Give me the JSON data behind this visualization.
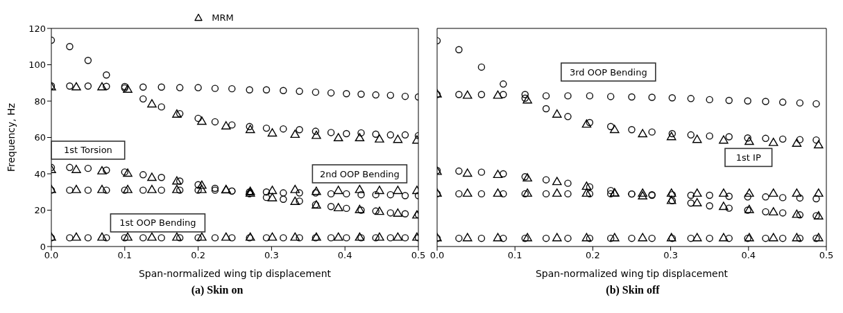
{
  "chart_data": [
    {
      "type": "scatter",
      "title": "(a) Skin on",
      "xlabel": "Span-normalized wing tip displacement",
      "ylabel": "Frequency, Hz",
      "xlim": [
        0,
        0.5
      ],
      "ylim": [
        0,
        120
      ],
      "xticks": [
        {
          "value": 0,
          "label": "0.0"
        },
        0.1,
        0.2,
        0.3,
        0.4,
        0.5
      ],
      "yticks": [
        0,
        20,
        40,
        60,
        80,
        100,
        120
      ],
      "grid": false,
      "legend": "top",
      "annotations": [
        "1st Torsion",
        "1st OOP Bending",
        "2nd OOP Bending"
      ],
      "series": [
        {
          "name": "MRM",
          "color": "#000000",
          "marker": "triangle",
          "x": [
            0,
            0.034,
            0.069,
            0.104,
            0.137,
            0.171,
            0.205,
            0.238,
            0.271,
            0.301,
            0.332,
            0.361,
            0.391,
            0.42,
            0.447,
            0.472,
            0.498,
            0,
            0.034,
            0.069,
            0.104,
            0.137,
            0.171,
            0.205,
            0.238,
            0.271,
            0.301,
            0.332,
            0.361,
            0.391,
            0.42,
            0.447,
            0.472,
            0.498,
            0,
            0.034,
            0.069,
            0.104,
            0.137,
            0.171,
            0.205,
            0.238,
            0.271,
            0.301,
            0.332,
            0.361,
            0.391,
            0.42,
            0.447,
            0.472,
            0.498,
            0,
            0.034,
            0.069,
            0.104,
            0.137,
            0.171,
            0.205,
            0.238,
            0.271,
            0.301,
            0.332,
            0.361,
            0.391,
            0.42,
            0.447,
            0.472,
            0.498
          ],
          "values": [
            4.8,
            4.8,
            4.8,
            4.8,
            4.8,
            4.8,
            4.8,
            4.8,
            4.8,
            4.8,
            4.8,
            4.8,
            4.8,
            4.8,
            4.8,
            4.8,
            4.8,
            31,
            31,
            31,
            31,
            31,
            31,
            31,
            31,
            30,
            30.5,
            31,
            30,
            30.5,
            31,
            30.5,
            30.5,
            30.5,
            42,
            42,
            41.3,
            40,
            37.7,
            35.7,
            33.4,
            30.8,
            29,
            26.5,
            24.5,
            22.5,
            21,
            20,
            19,
            18,
            17,
            87.5,
            87.5,
            87.5,
            86.2,
            78.1,
            72.5,
            68.6,
            66,
            64,
            62.1,
            61.4,
            60.8,
            59.5,
            59.5,
            58.8,
            58.6,
            58.2
          ]
        },
        {
          "color": "#111111",
          "marker": "circle",
          "x": [
            0,
            0.025,
            0.05,
            0.075,
            0.1,
            0.125,
            0.15,
            0.175,
            0.2,
            0.223,
            0.246,
            0.27,
            0.293,
            0.316,
            0.338,
            0.36,
            0.381,
            0.402,
            0.422,
            0.442,
            0.462,
            0.482,
            0.5,
            0,
            0.025,
            0.05,
            0.075,
            0.1,
            0.125,
            0.15,
            0.175,
            0.2,
            0.223,
            0.246,
            0.27,
            0.293,
            0.316,
            0.338,
            0.36,
            0.381,
            0.402,
            0.422,
            0.442,
            0.462,
            0.482,
            0.5,
            0,
            0.025,
            0.05,
            0.075,
            0.1,
            0.125,
            0.15,
            0.175,
            0.2,
            0.223,
            0.246,
            0.27,
            0.293,
            0.316,
            0.338,
            0.36,
            0.381,
            0.402,
            0.422,
            0.442,
            0.462,
            0.482,
            0.5,
            0,
            0.025,
            0.05,
            0.075,
            0.1,
            0.125,
            0.15,
            0.175,
            0.2,
            0.223,
            0.246,
            0.27,
            0.293,
            0.316,
            0.338,
            0.36,
            0.381,
            0.402,
            0.422,
            0.442,
            0.462,
            0.482,
            0.5,
            0,
            0.025,
            0.05,
            0.075,
            0.1,
            0.125,
            0.15,
            0.175,
            0.2,
            0.223,
            0.246,
            0.27,
            0.293,
            0.316,
            0.338,
            0.36,
            0.381,
            0.402,
            0.422,
            0.442,
            0.462,
            0.482,
            0.5
          ],
          "values": [
            4.8,
            4.8,
            4.8,
            4.8,
            4.8,
            4.8,
            4.8,
            4.8,
            4.8,
            4.8,
            4.8,
            4.8,
            4.8,
            4.8,
            4.8,
            4.8,
            4.8,
            4.8,
            4.8,
            4.8,
            4.8,
            4.8,
            4.8,
            31,
            31,
            31,
            31,
            31,
            31,
            31,
            31,
            31,
            31,
            30.5,
            30,
            30,
            29.5,
            29.5,
            29.5,
            29,
            29,
            28.5,
            28.5,
            28.5,
            28,
            28,
            43.5,
            43.5,
            43,
            42,
            41,
            39.5,
            38,
            36,
            34,
            32,
            30.5,
            29,
            27,
            26,
            25,
            23,
            22,
            21,
            20,
            19.5,
            18.5,
            18,
            17.5,
            88.4,
            88.3,
            88.3,
            88.1,
            87.2,
            81.2,
            76.8,
            73.1,
            70.5,
            68.6,
            66.9,
            66,
            65.1,
            64.7,
            64.3,
            63.4,
            62.7,
            62.1,
            62.5,
            61.8,
            61.4,
            61.4,
            61,
            113.5,
            110,
            102.4,
            94.4,
            88,
            87.7,
            87.7,
            87.4,
            87.4,
            87,
            86.8,
            86.2,
            86.2,
            85.8,
            85.4,
            84.9,
            84.5,
            84.1,
            83.8,
            83.4,
            83.2,
            82.6,
            82.3
          ]
        }
      ]
    },
    {
      "type": "scatter",
      "title": "(b) Skin off",
      "xlabel": "Span-normalized wing tip displacement",
      "xlim": [
        0,
        0.5
      ],
      "ylim": [
        0,
        120
      ],
      "xticks": [
        {
          "value": 0,
          "label": "0.0"
        },
        0.1,
        0.2,
        0.3,
        0.4,
        0.5
      ],
      "yticks": [
        0,
        20,
        40,
        60,
        80,
        100,
        120
      ],
      "grid": false,
      "tick_labels": "x",
      "annotations": [
        "3rd OOP Bending",
        "1st IP"
      ],
      "series": [
        {
          "color": "#000000",
          "marker": "triangle",
          "x": [
            0,
            0.039,
            0.078,
            0.116,
            0.154,
            0.192,
            0.228,
            0.264,
            0.301,
            0.334,
            0.368,
            0.401,
            0.432,
            0.462,
            0.49,
            0,
            0.039,
            0.078,
            0.116,
            0.154,
            0.192,
            0.228,
            0.264,
            0.301,
            0.334,
            0.368,
            0.401,
            0.432,
            0.462,
            0.49,
            0,
            0.039,
            0.078,
            0.116,
            0.154,
            0.192,
            0.228,
            0.264,
            0.301,
            0.334,
            0.368,
            0.401,
            0.432,
            0.462,
            0.49,
            0,
            0.039,
            0.078,
            0.116,
            0.154,
            0.192,
            0.228,
            0.264,
            0.301,
            0.334,
            0.368,
            0.401,
            0.432,
            0.462,
            0.49
          ],
          "values": [
            4.5,
            4.5,
            4.5,
            4.5,
            4.5,
            4.5,
            4.5,
            4.5,
            4.5,
            4.5,
            4.5,
            4.5,
            4.5,
            4.5,
            4.5,
            29,
            29,
            29,
            29,
            29,
            29,
            29,
            29,
            29,
            29,
            29,
            29,
            29,
            29,
            29,
            41,
            40,
            39.3,
            37.4,
            35.4,
            32.8,
            29.2,
            27.5,
            25,
            23.7,
            21.7,
            20,
            18.7,
            17.4,
            16.5,
            83.6,
            82.9,
            82.9,
            80.3,
            72.5,
            67,
            64,
            61.7,
            60.1,
            58.6,
            58.2,
            57.5,
            56.9,
            56.5,
            55.6
          ]
        },
        {
          "color": "#111111",
          "marker": "circle",
          "x": [
            0,
            0.028,
            0.057,
            0.085,
            0.113,
            0.14,
            0.168,
            0.196,
            0.223,
            0.25,
            0.276,
            0.302,
            0.326,
            0.35,
            0.375,
            0.399,
            0.422,
            0.444,
            0.466,
            0.487,
            0,
            0.028,
            0.057,
            0.085,
            0.113,
            0.14,
            0.168,
            0.196,
            0.223,
            0.25,
            0.276,
            0.302,
            0.326,
            0.35,
            0.375,
            0.399,
            0.422,
            0.444,
            0.466,
            0.487,
            0,
            0.028,
            0.057,
            0.085,
            0.113,
            0.14,
            0.168,
            0.196,
            0.223,
            0.25,
            0.276,
            0.302,
            0.326,
            0.35,
            0.375,
            0.399,
            0.422,
            0.444,
            0.466,
            0.487,
            0,
            0.028,
            0.057,
            0.085,
            0.113,
            0.14,
            0.168,
            0.196,
            0.223,
            0.25,
            0.276,
            0.302,
            0.326,
            0.35,
            0.375,
            0.399,
            0.422,
            0.444,
            0.466,
            0.487,
            0,
            0.028,
            0.057,
            0.085,
            0.113,
            0.14,
            0.168,
            0.196,
            0.223,
            0.25,
            0.276,
            0.302,
            0.326,
            0.35,
            0.375,
            0.399,
            0.422,
            0.444,
            0.466,
            0.487
          ],
          "values": [
            4.5,
            4.5,
            4.5,
            4.5,
            4.5,
            4.5,
            4.5,
            4.5,
            4.5,
            4.5,
            4.5,
            4.5,
            4.5,
            4.5,
            4.5,
            4.5,
            4.5,
            4.5,
            4.5,
            4.5,
            29,
            29,
            29,
            29,
            29,
            29,
            29,
            29,
            29,
            28.9,
            28.5,
            28.5,
            28.2,
            28.2,
            27.6,
            27.3,
            27.3,
            26.9,
            26.7,
            26.3,
            41.8,
            41.5,
            40.9,
            40,
            38.4,
            36.7,
            34.8,
            32.8,
            30.8,
            28.9,
            28.2,
            25.2,
            23.9,
            22.4,
            21.1,
            20,
            19.1,
            18.5,
            17.4,
            16.9,
            83.6,
            83.6,
            83.6,
            83.6,
            81.6,
            75.8,
            71.5,
            68.2,
            66,
            64.3,
            63,
            62.1,
            61.4,
            60.8,
            60.4,
            59.7,
            59.5,
            59.1,
            58.8,
            58.6,
            113.2,
            108.3,
            98.7,
            89.4,
            83.6,
            82.9,
            82.9,
            82.9,
            82.5,
            82.3,
            82.1,
            81.8,
            81.4,
            80.8,
            80.4,
            80.1,
            79.8,
            79.4,
            79,
            78.5
          ]
        }
      ]
    }
  ]
}
